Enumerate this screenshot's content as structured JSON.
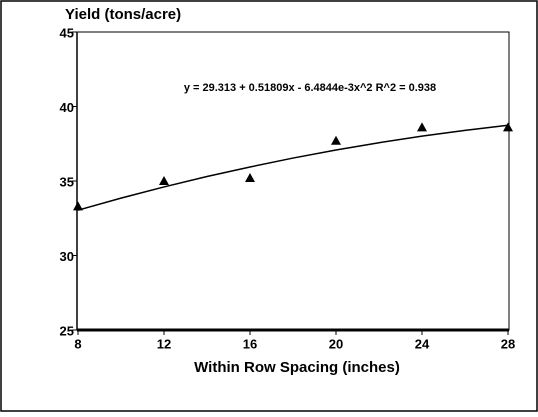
{
  "chart_data": {
    "type": "scatter",
    "y_label": "Yield (tons/acre)",
    "x_label": "Within Row Spacing (inches)",
    "annotation": "y = 29.313 + 0.51809x - 6.4844e-3x^2   R^2 = 0.938",
    "xlim": [
      8,
      28
    ],
    "ylim": [
      25,
      45
    ],
    "xticks": [
      8,
      12,
      16,
      20,
      24,
      28
    ],
    "yticks": [
      25,
      30,
      35,
      40,
      45
    ],
    "series": [
      {
        "type": "scatter",
        "color": "#000000",
        "x": [
          8,
          12,
          16,
          20,
          24,
          28
        ],
        "values": [
          33.3,
          35.0,
          35.2,
          37.7,
          38.6,
          38.6
        ]
      },
      {
        "type": "line",
        "color": "#000000",
        "x": [
          8,
          10,
          12,
          14,
          16,
          18,
          20,
          22,
          24,
          26,
          28
        ],
        "values": [
          33.04,
          33.85,
          34.6,
          35.3,
          35.94,
          36.54,
          37.08,
          37.57,
          38.01,
          38.4,
          38.74
        ]
      }
    ]
  }
}
